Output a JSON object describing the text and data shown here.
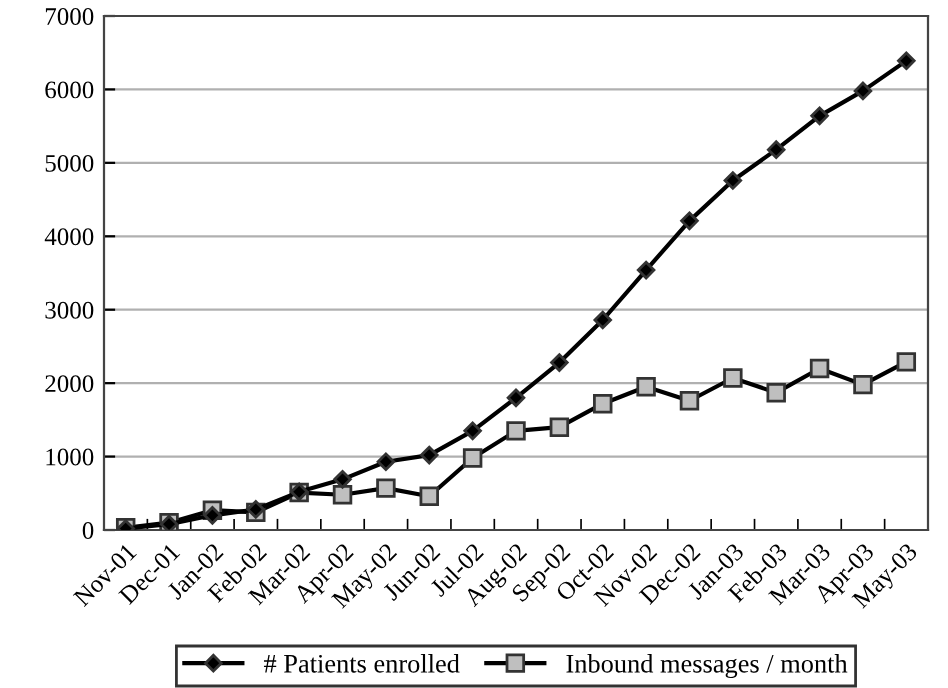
{
  "chart_data": {
    "type": "line",
    "categories": [
      "Nov-01",
      "Dec-01",
      "Jan-02",
      "Feb-02",
      "Mar-02",
      "Apr-02",
      "May-02",
      "Jun-02",
      "Jul-02",
      "Aug-02",
      "Sep-02",
      "Oct-02",
      "Nov-02",
      "Dec-02",
      "Jan-03",
      "Feb-03",
      "Mar-03",
      "Apr-03",
      "May-03"
    ],
    "series": [
      {
        "name": "# Patients enrolled",
        "color": "#000000",
        "marker": "diamond",
        "values": [
          20,
          80,
          200,
          280,
          520,
          690,
          930,
          1020,
          1350,
          1800,
          2280,
          2860,
          3540,
          4210,
          4760,
          5180,
          5640,
          5980,
          6390
        ]
      },
      {
        "name": "Inbound messages / month",
        "color": "#000000",
        "marker": "square",
        "values": [
          30,
          100,
          270,
          240,
          510,
          480,
          570,
          460,
          980,
          1350,
          1400,
          1720,
          1950,
          1760,
          2070,
          1870,
          2200,
          1980,
          2290
        ]
      }
    ],
    "ylim": [
      0,
      7000
    ],
    "yticks": [
      0,
      1000,
      2000,
      3000,
      4000,
      5000,
      6000,
      7000
    ],
    "grid": "y",
    "legend": "bottom",
    "line_style": "solid"
  }
}
